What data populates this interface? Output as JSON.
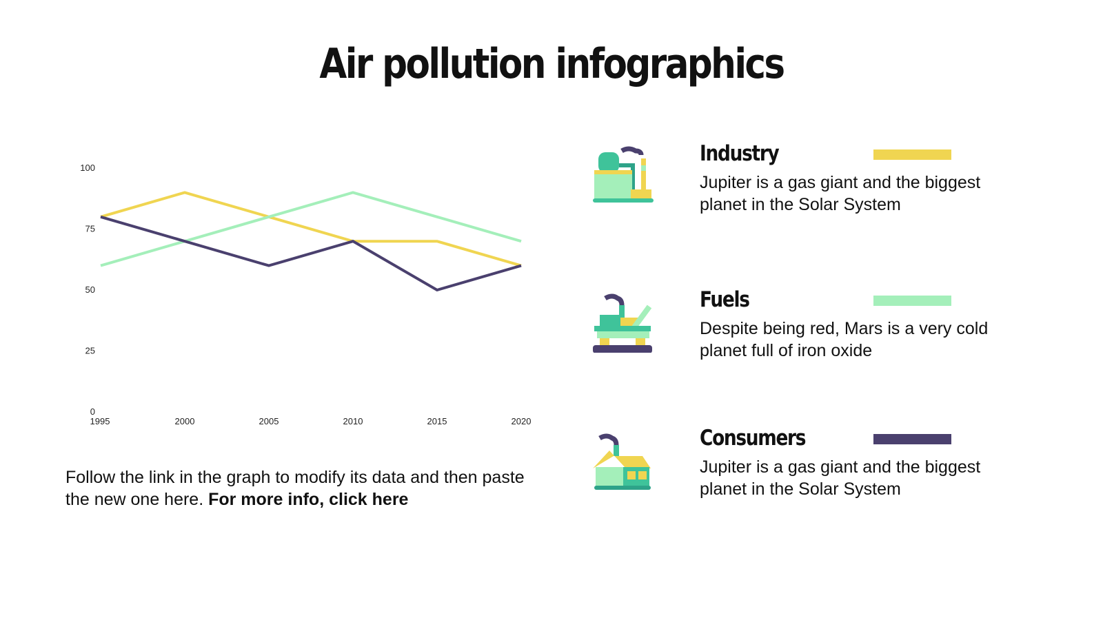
{
  "title": "Air pollution infographics",
  "chart_data": {
    "type": "line",
    "x": [
      "1995",
      "2000",
      "2005",
      "2010",
      "2015",
      "2020"
    ],
    "yticks": [
      "0",
      "25",
      "50",
      "75",
      "100"
    ],
    "ylim": [
      0,
      100
    ],
    "grid": false,
    "series": [
      {
        "key": "industry",
        "color": "#f0d551",
        "values": [
          80,
          90,
          80,
          70,
          70,
          60
        ]
      },
      {
        "key": "fuels",
        "color": "#a4efba",
        "values": [
          60,
          70,
          80,
          90,
          80,
          70
        ]
      },
      {
        "key": "consumers",
        "color": "#4a406e",
        "values": [
          80,
          70,
          60,
          70,
          50,
          60
        ]
      }
    ]
  },
  "note": {
    "text": "Follow the link in the graph to modify its data and then paste the new one here. ",
    "link": "For more info, click here"
  },
  "legend": [
    {
      "title": "Industry",
      "color": "#f0d551",
      "icon": "factory-icon",
      "text": "Jupiter is a gas giant and the biggest planet in the Solar System"
    },
    {
      "title": "Fuels",
      "color": "#a4efba",
      "icon": "oil-platform-icon",
      "text": "Despite being red, Mars is a very cold planet full of iron oxide"
    },
    {
      "title": "Consumers",
      "color": "#4a406e",
      "icon": "house-icon",
      "text": "Jupiter is a gas giant and the biggest planet in the Solar System"
    }
  ]
}
